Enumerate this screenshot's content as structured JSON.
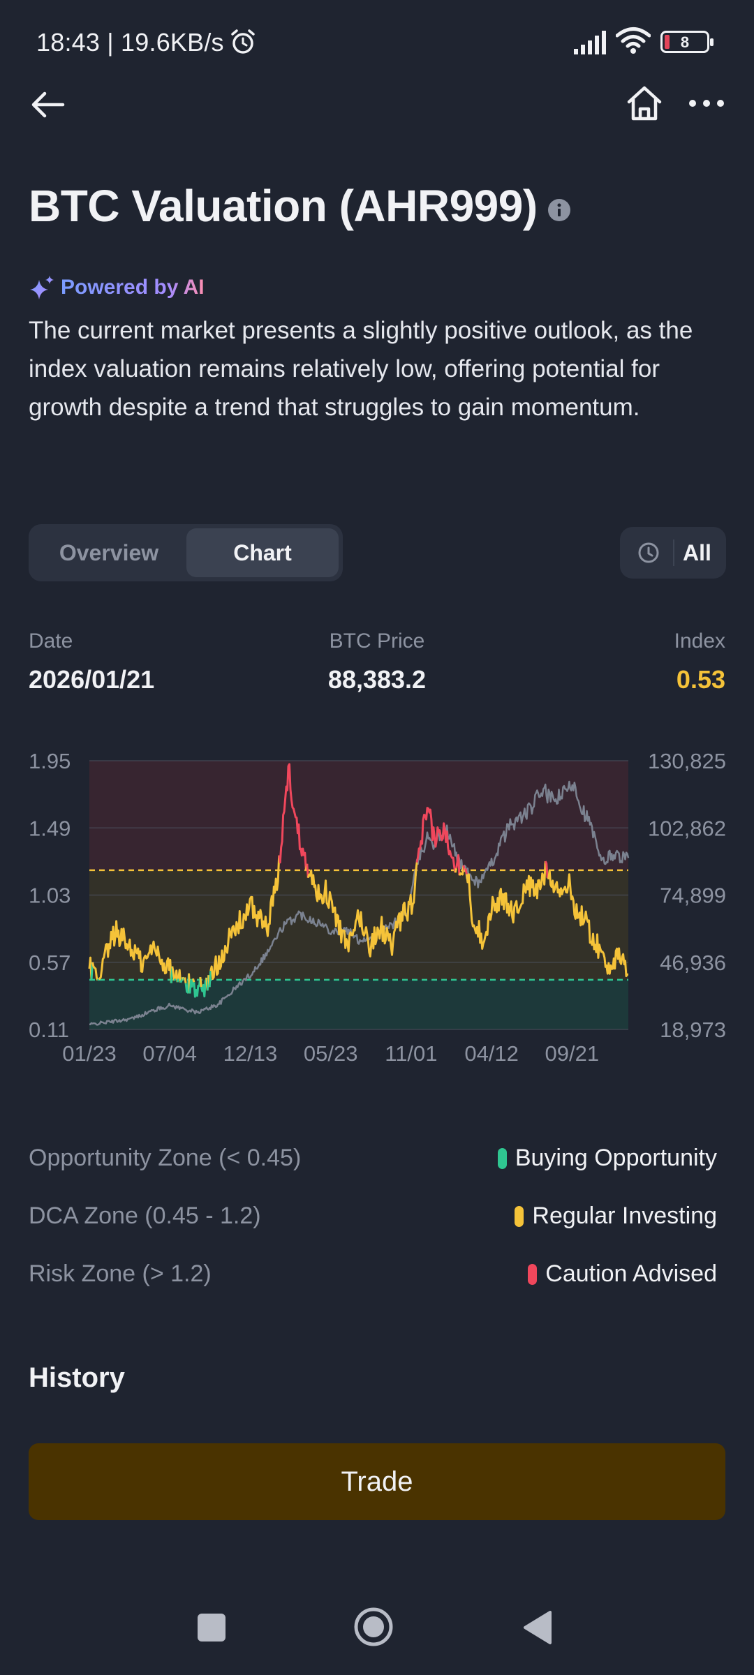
{
  "status_bar": {
    "time": "18:43 | 19.6KB/s",
    "battery": "8"
  },
  "nav": {
    "back_icon": "arrow-left-icon",
    "home_icon": "home-icon",
    "more_icon": "more-dots-icon"
  },
  "page": {
    "title": "BTC Valuation (AHR999)",
    "ai_label": "Powered by AI",
    "summary": "The current market presents a slightly positive outlook, as the index valuation remains relatively low, offering potential for growth despite a trend that struggles to gain momentum."
  },
  "tabs": [
    {
      "label": "Overview",
      "active": false
    },
    {
      "label": "Chart",
      "active": true
    }
  ],
  "range": {
    "label": "All",
    "icon": "clock-icon"
  },
  "stats": {
    "date_label": "Date",
    "date_value": "2026/01/21",
    "price_label": "BTC Price",
    "price_value": "88,383.2",
    "index_label": "Index",
    "index_value": "0.53"
  },
  "chart_data": {
    "type": "line",
    "x_ticks": [
      "01/23",
      "07/04",
      "12/13",
      "05/23",
      "11/01",
      "04/12",
      "09/21"
    ],
    "y_left_ticks": [
      "1.95",
      "1.49",
      "1.03",
      "0.57",
      "0.11"
    ],
    "y_right_ticks": [
      "130,825",
      "102,862",
      "74,899",
      "46,936",
      "18,973"
    ],
    "y_left_range": [
      0.11,
      1.95
    ],
    "y_right_range": [
      18973,
      130825
    ],
    "thresholds": [
      0.45,
      1.2
    ],
    "index_anchors": [
      [
        0,
        0.55
      ],
      [
        0.02,
        0.42
      ],
      [
        0.03,
        0.62
      ],
      [
        0.05,
        0.78
      ],
      [
        0.08,
        0.66
      ],
      [
        0.1,
        0.55
      ],
      [
        0.12,
        0.68
      ],
      [
        0.14,
        0.56
      ],
      [
        0.16,
        0.47
      ],
      [
        0.18,
        0.42
      ],
      [
        0.2,
        0.4
      ],
      [
        0.22,
        0.42
      ],
      [
        0.25,
        0.66
      ],
      [
        0.28,
        0.85
      ],
      [
        0.3,
        0.95
      ],
      [
        0.33,
        0.8
      ],
      [
        0.35,
        1.15
      ],
      [
        0.36,
        1.55
      ],
      [
        0.37,
        1.9
      ],
      [
        0.38,
        1.6
      ],
      [
        0.39,
        1.42
      ],
      [
        0.4,
        1.3
      ],
      [
        0.42,
        1.05
      ],
      [
        0.44,
        1.05
      ],
      [
        0.46,
        0.85
      ],
      [
        0.48,
        0.65
      ],
      [
        0.5,
        0.9
      ],
      [
        0.52,
        0.68
      ],
      [
        0.54,
        0.82
      ],
      [
        0.56,
        0.68
      ],
      [
        0.58,
        0.88
      ],
      [
        0.6,
        0.98
      ],
      [
        0.61,
        1.25
      ],
      [
        0.62,
        1.5
      ],
      [
        0.63,
        1.58
      ],
      [
        0.64,
        1.42
      ],
      [
        0.66,
        1.46
      ],
      [
        0.68,
        1.25
      ],
      [
        0.7,
        1.22
      ],
      [
        0.71,
        0.9
      ],
      [
        0.73,
        0.72
      ],
      [
        0.75,
        0.98
      ],
      [
        0.77,
        1.0
      ],
      [
        0.79,
        0.9
      ],
      [
        0.81,
        1.1
      ],
      [
        0.83,
        1.05
      ],
      [
        0.85,
        1.22
      ],
      [
        0.87,
        1.05
      ],
      [
        0.89,
        1.1
      ],
      [
        0.9,
        0.95
      ],
      [
        0.92,
        0.85
      ],
      [
        0.94,
        0.7
      ],
      [
        0.96,
        0.55
      ],
      [
        0.98,
        0.6
      ],
      [
        1.0,
        0.5
      ]
    ],
    "price_anchors": [
      [
        0,
        21000
      ],
      [
        0.05,
        22500
      ],
      [
        0.08,
        23500
      ],
      [
        0.12,
        27000
      ],
      [
        0.15,
        29000
      ],
      [
        0.2,
        26000
      ],
      [
        0.24,
        29500
      ],
      [
        0.27,
        36000
      ],
      [
        0.3,
        42000
      ],
      [
        0.33,
        51000
      ],
      [
        0.36,
        62000
      ],
      [
        0.39,
        67000
      ],
      [
        0.42,
        64000
      ],
      [
        0.45,
        60000
      ],
      [
        0.48,
        60000
      ],
      [
        0.5,
        56000
      ],
      [
        0.53,
        58000
      ],
      [
        0.56,
        62000
      ],
      [
        0.59,
        68000
      ],
      [
        0.6,
        78000
      ],
      [
        0.61,
        90000
      ],
      [
        0.63,
        100000
      ],
      [
        0.64,
        96000
      ],
      [
        0.66,
        103000
      ],
      [
        0.68,
        92000
      ],
      [
        0.7,
        84000
      ],
      [
        0.72,
        80000
      ],
      [
        0.74,
        85000
      ],
      [
        0.76,
        95000
      ],
      [
        0.78,
        104000
      ],
      [
        0.8,
        107000
      ],
      [
        0.82,
        111000
      ],
      [
        0.84,
        119000
      ],
      [
        0.86,
        114000
      ],
      [
        0.88,
        117000
      ],
      [
        0.9,
        122000
      ],
      [
        0.91,
        113000
      ],
      [
        0.93,
        104000
      ],
      [
        0.95,
        88000
      ],
      [
        0.97,
        92000
      ],
      [
        1.0,
        90000
      ]
    ],
    "colors": {
      "opportunity": "#2fc691",
      "dca": "#f5c339",
      "risk": "#f0475c",
      "price": "#7b8290"
    }
  },
  "zones": [
    {
      "label": "Opportunity Zone (< 0.45)",
      "tag": "Buying Opportunity",
      "color": "#2fc691"
    },
    {
      "label": "DCA Zone (0.45 - 1.2)",
      "tag": "Regular Investing",
      "color": "#f5c339"
    },
    {
      "label": "Risk Zone (> 1.2)",
      "tag": "Caution Advised",
      "color": "#f0475c"
    }
  ],
  "history_title": "History",
  "trade_label": "Trade"
}
